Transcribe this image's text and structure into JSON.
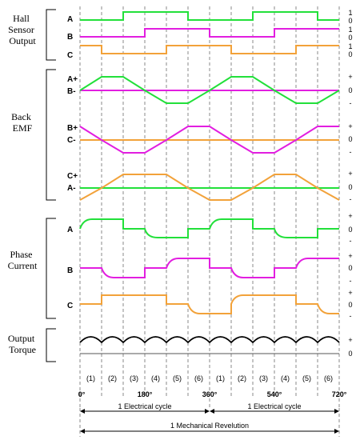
{
  "colors": {
    "green": "#22e03a",
    "magenta": "#e21ee0",
    "orange": "#f2a23a",
    "black": "#000000",
    "grid": "#8a8a8a"
  },
  "groups": {
    "hall": "Hall\nSensor\nOutput",
    "emf": "Back\nEMF",
    "current": "Phase\nCurrent",
    "torque": "Output\nTorque"
  },
  "labels": {
    "hall_a": "A",
    "hall_b": "B",
    "hall_c": "C",
    "emf_ab_top": "A+",
    "emf_ab_bot": "B-",
    "emf_bc_top": "B+",
    "emf_bc_bot": "C-",
    "emf_ca_top": "C+",
    "emf_ca_bot": "A-",
    "cur_a": "A",
    "cur_b": "B",
    "cur_c": "C"
  },
  "right_marks": {
    "one": "1",
    "zero": "0",
    "plus": "+",
    "minus": "-"
  },
  "steps": [
    "(1)",
    "(2)",
    "(3)",
    "(4)",
    "(5)",
    "(6)",
    "(1)",
    "(2)",
    "(3)",
    "(4)",
    "(5)",
    "(6)"
  ],
  "angles": [
    "0°",
    "180°",
    "360°",
    "540°",
    "720°"
  ],
  "cycle_label_1": "1 Electrical cycle",
  "cycle_label_2": "1 Electrical cycle",
  "mech_label": "1 Mechanical Revelution"
}
